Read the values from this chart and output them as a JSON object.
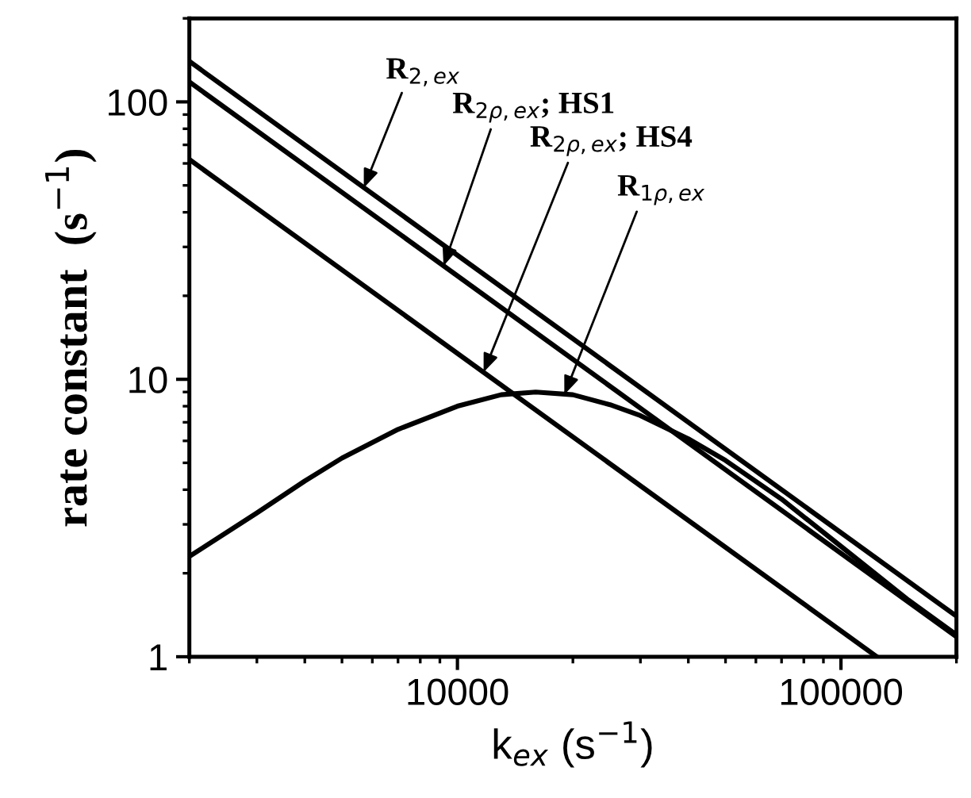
{
  "chart_data": {
    "type": "line",
    "xlabel": "k$_{ex}$ (s$^{−1}$)",
    "ylabel": "rate constant  (s$^{−1}$)",
    "log": "xy",
    "xlim": [
      2000,
      200000
    ],
    "ylim": [
      1,
      200
    ],
    "xticks": [
      10000,
      100000
    ],
    "yticks": [
      1,
      10,
      100
    ],
    "grid": false,
    "marker": "none",
    "line_style": "solid",
    "series": [
      {
        "color": "#000000",
        "x": [
          2000,
          200000
        ],
        "values": [
          140,
          1.4
        ]
      },
      {
        "color": "#000000",
        "x": [
          2000,
          200000
        ],
        "values": [
          118,
          1.18
        ]
      },
      {
        "color": "#000000",
        "x": [
          2000,
          124000
        ],
        "values": [
          62,
          1
        ]
      },
      {
        "color": "#000000",
        "x": [
          2000,
          3000,
          4000,
          5000,
          7000,
          10000,
          13000,
          16000,
          20000,
          25000,
          30000,
          40000,
          50000,
          70000,
          100000,
          150000,
          200000
        ],
        "values": [
          2.3,
          3.3,
          4.3,
          5.2,
          6.6,
          8.0,
          8.8,
          9.0,
          8.8,
          8.1,
          7.4,
          6.1,
          5.1,
          3.7,
          2.5,
          1.6,
          1.2
        ]
      }
    ],
    "annotations": [
      {
        "text": "R$_{2,ex}$",
        "x": 5700,
        "y": 49
      },
      {
        "text": "R$_{2ρ,ex}$; HS1",
        "x": 9200,
        "y": 25.6
      },
      {
        "text": "R$_{2ρ,ex}$; HS4",
        "x": 11700,
        "y": 10.6
      },
      {
        "text": "R$_{1ρ,ex}$",
        "x": 19000,
        "y": 8.8
      }
    ]
  }
}
